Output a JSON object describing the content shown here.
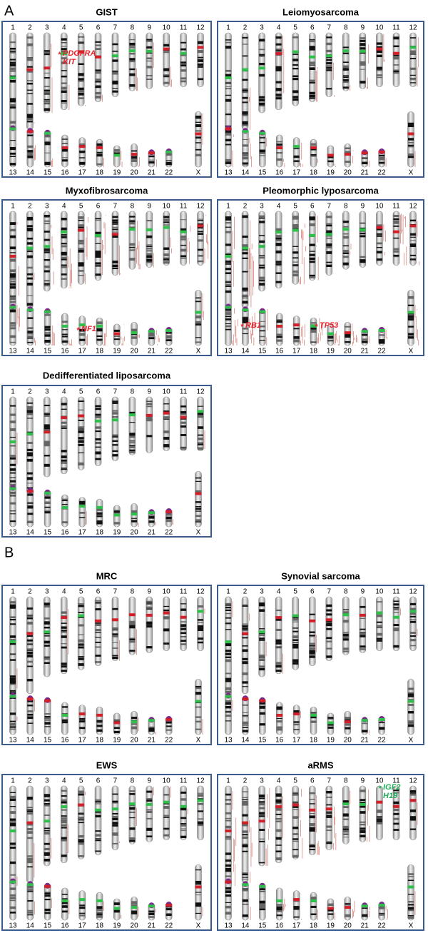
{
  "sections": [
    "A",
    "B"
  ],
  "panels": [
    {
      "title": "GIST",
      "top_row": [
        "1",
        "2",
        "3",
        "4",
        "5",
        "6",
        "7",
        "8",
        "9",
        "10",
        "11",
        "12"
      ],
      "bottom_row": [
        "13",
        "14",
        "15",
        "16",
        "17",
        "18",
        "19",
        "20",
        "21",
        "22",
        "X"
      ],
      "annotations": [
        {
          "marker": "*",
          "labels": [
            "PDGFRA",
            "KIT"
          ],
          "color": "#e8202a"
        }
      ]
    },
    {
      "title": "Leiomyosarcoma",
      "top_row": [
        "1",
        "2",
        "3",
        "4",
        "5",
        "6",
        "7",
        "8",
        "9",
        "10",
        "11",
        "12"
      ],
      "bottom_row": [
        "13",
        "14",
        "15",
        "16",
        "17",
        "18",
        "19",
        "20",
        "21",
        "22",
        "X"
      ],
      "annotations": []
    },
    {
      "title": "Myxofibrosarcoma",
      "top_row": [
        "1",
        "2",
        "3",
        "4",
        "5",
        "6",
        "7",
        "8",
        "9",
        "10",
        "11",
        "12"
      ],
      "bottom_row": [
        "13",
        "14",
        "15",
        "16",
        "17",
        "18",
        "19",
        "20",
        "21",
        "22",
        "X"
      ],
      "annotations": [
        {
          "marker": "*",
          "labels": [
            "NF1"
          ],
          "color": "#e8202a"
        }
      ]
    },
    {
      "title": "Pleomorphic lyposarcoma",
      "top_row": [
        "1",
        "2",
        "3",
        "4",
        "5",
        "6",
        "7",
        "8",
        "9",
        "10",
        "11",
        "12"
      ],
      "bottom_row": [
        "13",
        "14",
        "15",
        "16",
        "17",
        "18",
        "19",
        "20",
        "21",
        "22",
        "X"
      ],
      "annotations": [
        {
          "marker": "*",
          "labels": [
            "RB1"
          ],
          "color": "#e8202a"
        },
        {
          "marker": "*",
          "labels": [
            "TP53"
          ],
          "color": "#e8202a"
        }
      ]
    },
    {
      "title": "Dedifferentiated liposarcoma",
      "top_row": [
        "1",
        "2",
        "3",
        "4",
        "5",
        "6",
        "7",
        "8",
        "9",
        "10",
        "11",
        "12"
      ],
      "bottom_row": [
        "13",
        "14",
        "15",
        "16",
        "17",
        "18",
        "19",
        "20",
        "21",
        "22",
        "X"
      ],
      "annotations": []
    },
    {
      "title": "MRC",
      "top_row": [
        "1",
        "2",
        "3",
        "4",
        "5",
        "6",
        "7",
        "8",
        "9",
        "10",
        "11",
        "12"
      ],
      "bottom_row": [
        "13",
        "14",
        "15",
        "16",
        "17",
        "18",
        "19",
        "20",
        "21",
        "22",
        "X"
      ],
      "annotations": []
    },
    {
      "title": "Synovial sarcoma",
      "top_row": [
        "1",
        "2",
        "3",
        "4",
        "5",
        "6",
        "7",
        "8",
        "9",
        "10",
        "11",
        "12"
      ],
      "bottom_row": [
        "13",
        "14",
        "15",
        "16",
        "17",
        "18",
        "19",
        "20",
        "21",
        "22",
        "X"
      ],
      "annotations": []
    },
    {
      "title": "EWS",
      "top_row": [
        "1",
        "2",
        "3",
        "4",
        "5",
        "6",
        "7",
        "8",
        "9",
        "10",
        "11",
        "12"
      ],
      "bottom_row": [
        "13",
        "14",
        "15",
        "16",
        "17",
        "18",
        "19",
        "20",
        "21",
        "22",
        "X"
      ],
      "annotations": []
    },
    {
      "title": "aRMS",
      "top_row": [
        "1",
        "2",
        "3",
        "4",
        "5",
        "6",
        "7",
        "8",
        "9",
        "10",
        "11",
        "12"
      ],
      "bottom_row": [
        "13",
        "14",
        "15",
        "16",
        "17",
        "18",
        "19",
        "20",
        "21",
        "22",
        "X"
      ],
      "annotations": [
        {
          "marker": "*",
          "labels": [
            "IGF2",
            "H19"
          ],
          "color": "#1fb05a"
        }
      ]
    }
  ]
}
